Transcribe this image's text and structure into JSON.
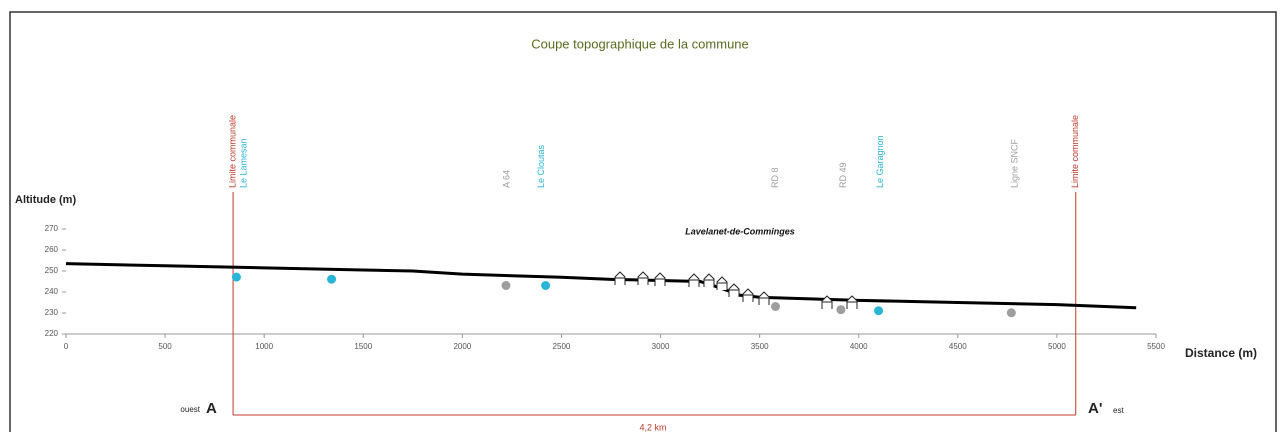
{
  "chart_data": {
    "type": "line",
    "title": "Coupe topographique de la commune",
    "y_label": "Altitude (m)",
    "x_label": "Distance (m)",
    "annotation": "Lavelanet-de-Comminges",
    "x": [
      0,
      500,
      1000,
      1500,
      1750,
      2000,
      2500,
      2750,
      3000,
      3200,
      3300,
      3400,
      3500,
      4000,
      4500,
      5000,
      5400
    ],
    "values": [
      253.5,
      252.5,
      251.5,
      250.5,
      250,
      248.5,
      247,
      246,
      245.5,
      245,
      242,
      238.5,
      237.5,
      236,
      235,
      234,
      232.5
    ],
    "color": "#000000",
    "xlim": [
      0,
      5500
    ],
    "ylim": [
      220,
      270
    ],
    "xticks": [
      0,
      500,
      1000,
      1500,
      2000,
      2500,
      3000,
      3500,
      4000,
      4500,
      5000,
      5500
    ],
    "yticks": [
      220,
      230,
      240,
      250,
      260,
      270
    ],
    "points": [
      {
        "x": 860,
        "y": 249,
        "color": "#29b6d6"
      },
      {
        "x": 1340,
        "y": 248,
        "color": "#29b6d6"
      },
      {
        "x": 2220,
        "y": 245,
        "color": "#9e9e9e"
      },
      {
        "x": 2420,
        "y": 245,
        "color": "#29b6d6"
      },
      {
        "x": 3580,
        "y": 235,
        "color": "#9e9e9e"
      },
      {
        "x": 3910,
        "y": 233.5,
        "color": "#9e9e9e"
      },
      {
        "x": 4100,
        "y": 233,
        "color": "#29b6d6"
      },
      {
        "x": 4770,
        "y": 232,
        "color": "#9e9e9e"
      }
    ],
    "markers": [
      {
        "label": "Limite communale",
        "x": 843,
        "color": "#c0392b",
        "boundary": true
      },
      {
        "label": "Le Lamesan",
        "x": 900,
        "color": "#29b6d6"
      },
      {
        "label": "A 64",
        "x": 2227,
        "color": "#9e9e9e"
      },
      {
        "label": "Le Cloutas",
        "x": 2400,
        "color": "#29b6d6"
      },
      {
        "label": "RD 8",
        "x": 3580,
        "color": "#9e9e9e"
      },
      {
        "label": "RD 49",
        "x": 3924,
        "color": "#9e9e9e"
      },
      {
        "label": "Le Garagnon",
        "x": 4110,
        "color": "#29b6d6"
      },
      {
        "label": "Ligne SNCF",
        "x": 4790,
        "color": "#9e9e9e"
      },
      {
        "label": "Limite communale",
        "x": 5095,
        "color": "#c0392b",
        "boundary": true
      }
    ],
    "section": {
      "start": "A",
      "start_side": "ouest",
      "end": "A'",
      "end_side": "est",
      "length": "4,2 km"
    }
  }
}
